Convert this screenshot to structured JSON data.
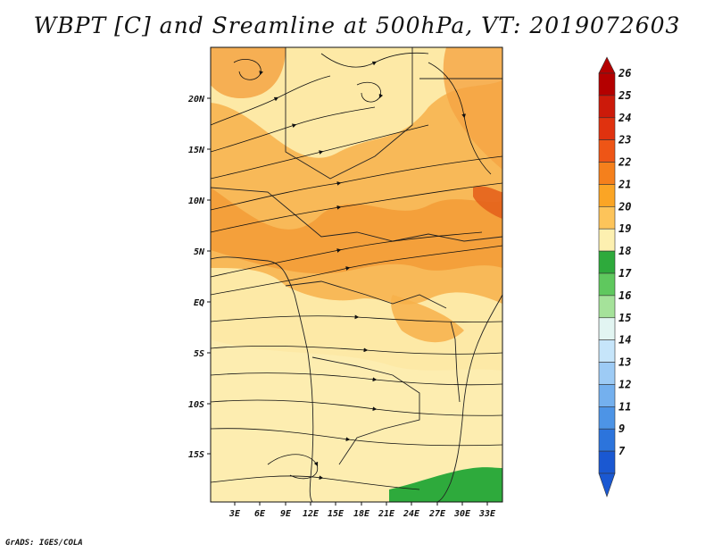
{
  "title": "WBPT [C] and Sreamline at 500hPa, VT: 2019072603",
  "credit": "GrADS: IGES/COLA",
  "map": {
    "variable": "WBPT [C]",
    "overlay": "Sreamline",
    "level": "500hPa",
    "valid_time": "2019072603",
    "lon_labels": [
      "3E",
      "6E",
      "9E",
      "12E",
      "15E",
      "18E",
      "21E",
      "24E",
      "27E",
      "30E",
      "33E"
    ],
    "lat_labels": [
      "20N",
      "15N",
      "10N",
      "5N",
      "EQ",
      "5S",
      "10S",
      "15S"
    ]
  },
  "colorbar": {
    "labels": [
      "26",
      "25",
      "24",
      "23",
      "22",
      "21",
      "20",
      "19",
      "18",
      "17",
      "16",
      "15",
      "14",
      "13",
      "12",
      "11",
      "9",
      "7"
    ],
    "colors": [
      "#b40000",
      "#cc1a0a",
      "#e0320f",
      "#ee5516",
      "#f5801c",
      "#fba525",
      "#fdc45a",
      "#fdf0b0",
      "#2eaa3c",
      "#5fc85e",
      "#a5e29a",
      "#e2f5f2",
      "#c6e5fa",
      "#9dcbf5",
      "#74b0ee",
      "#4d94e6",
      "#2c74dc",
      "#1a58d2"
    ]
  }
}
